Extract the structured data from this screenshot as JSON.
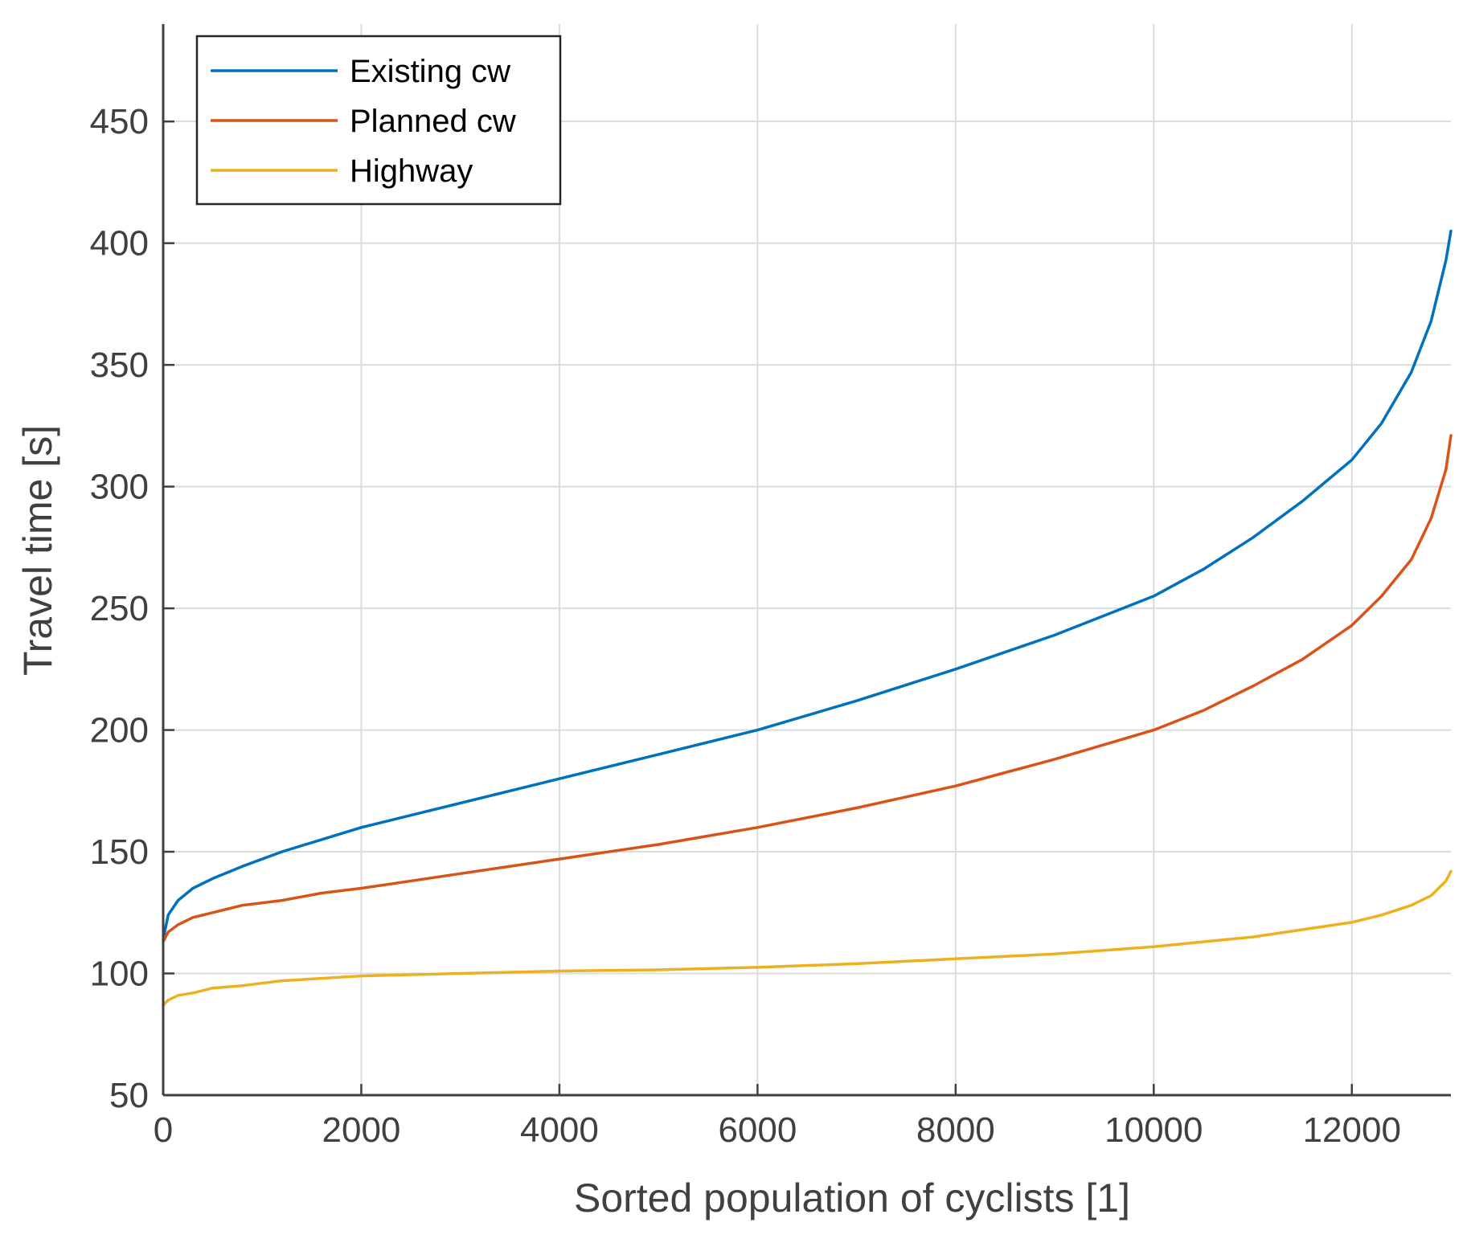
{
  "chart_data": {
    "type": "line",
    "title": "",
    "xlabel": "Sorted population of cyclists [1]",
    "ylabel": "Travel time [s]",
    "xlim": [
      0,
      13000
    ],
    "ylim": [
      50,
      490
    ],
    "xticks": [
      0,
      2000,
      4000,
      6000,
      8000,
      10000,
      12000
    ],
    "xtick_labels": [
      "0",
      "2000",
      "4000",
      "6000",
      "8000",
      "10000",
      "12000"
    ],
    "yticks": [
      50,
      100,
      150,
      200,
      250,
      300,
      350,
      400,
      450
    ],
    "ytick_labels": [
      "50",
      "100",
      "150",
      "200",
      "250",
      "300",
      "350",
      "400",
      "450"
    ],
    "grid": true,
    "legend_position": "top-left",
    "colors": {
      "axis": "#404040",
      "grid": "#dcdcdc",
      "legend_border": "#262626"
    },
    "series": [
      {
        "name": "Existing cw",
        "color": "#0072BD",
        "x": [
          0,
          50,
          150,
          300,
          500,
          800,
          1200,
          1600,
          2000,
          3000,
          4000,
          5000,
          6000,
          7000,
          8000,
          9000,
          10000,
          10500,
          11000,
          11500,
          12000,
          12300,
          12600,
          12800,
          12950,
          13000
        ],
        "y": [
          114,
          124,
          130,
          135,
          139,
          144,
          150,
          155,
          160,
          170,
          180,
          190,
          200,
          212,
          225,
          239,
          255,
          266,
          279,
          294,
          311,
          326,
          347,
          368,
          393,
          405
        ]
      },
      {
        "name": "Planned cw",
        "color": "#D95319",
        "x": [
          0,
          50,
          150,
          300,
          500,
          800,
          1200,
          1600,
          2000,
          3000,
          4000,
          5000,
          6000,
          7000,
          8000,
          9000,
          10000,
          10500,
          11000,
          11500,
          12000,
          12300,
          12600,
          12800,
          12950,
          13000
        ],
        "y": [
          113,
          117,
          120,
          123,
          125,
          128,
          130,
          133,
          135,
          141,
          147,
          153,
          160,
          168,
          177,
          188,
          200,
          208,
          218,
          229,
          243,
          255,
          270,
          287,
          307,
          321
        ]
      },
      {
        "name": "Highway",
        "color": "#EDB120",
        "x": [
          0,
          50,
          150,
          300,
          500,
          800,
          1200,
          1600,
          2000,
          3000,
          4000,
          5000,
          6000,
          7000,
          8000,
          9000,
          10000,
          10500,
          11000,
          11500,
          12000,
          12300,
          12600,
          12800,
          12950,
          13000
        ],
        "y": [
          87,
          89,
          91,
          92,
          94,
          95,
          97,
          98,
          99,
          100,
          101,
          101.5,
          102.5,
          104,
          106,
          108,
          111,
          113,
          115,
          118,
          121,
          124,
          128,
          132,
          138,
          142
        ]
      }
    ]
  }
}
